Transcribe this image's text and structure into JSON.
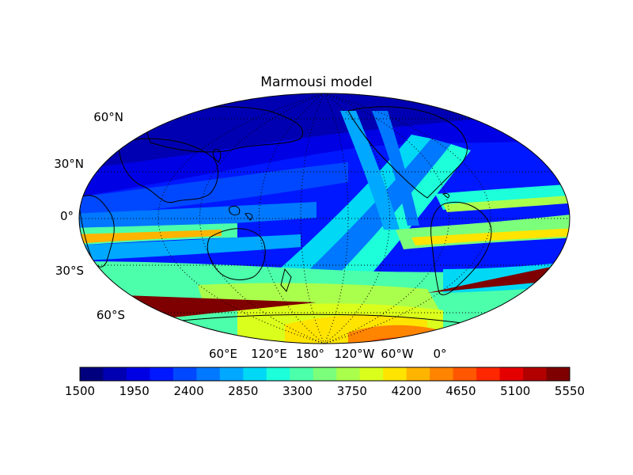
{
  "title": "Marmousi model",
  "colormap": "jet",
  "colors": {
    "land_outline": "#000000",
    "colorbar_levels": [
      "#00007f",
      "#0000b2",
      "#0000e5",
      "#0018ff",
      "#0048ff",
      "#0078ff",
      "#00a8ff",
      "#00d8f5",
      "#1cffda",
      "#4cffaa",
      "#7cff7a",
      "#aaff4c",
      "#daff1c",
      "#ffe400",
      "#ffb400",
      "#ff8400",
      "#ff5700",
      "#ff2700",
      "#e50000",
      "#b20000",
      "#7f0000"
    ]
  },
  "map": {
    "projection": "robinson",
    "central_longitude": 180,
    "lat_range": [
      -80,
      80
    ],
    "grid": "dotted",
    "lat_labels": [
      "60°N",
      "30°N",
      "0°",
      "30°S",
      "60°S"
    ],
    "lon_labels": [
      "60°E",
      "120°E",
      "180°",
      "120°W",
      "60°W",
      "0°"
    ]
  },
  "colorbar": {
    "min": 1500,
    "max": 5550,
    "step": 450,
    "tick_labels": [
      "1500",
      "1950",
      "2400",
      "2850",
      "3300",
      "3750",
      "4200",
      "4650",
      "5100",
      "5550"
    ]
  }
}
